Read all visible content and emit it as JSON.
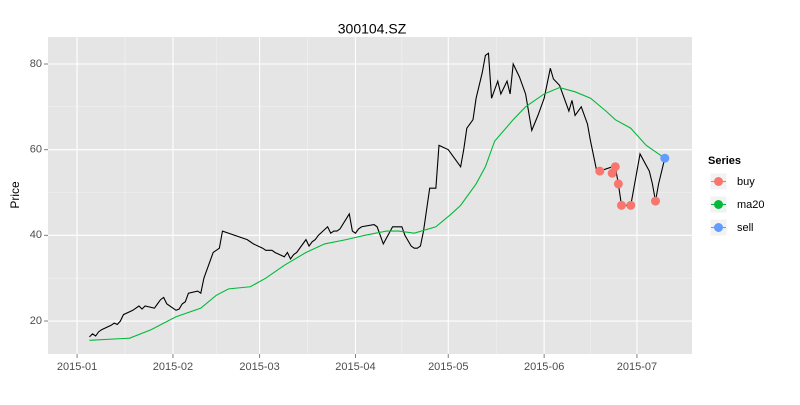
{
  "chart_data": {
    "type": "line",
    "title": "300104.SZ",
    "y_label": "Price",
    "legend_title": "Series",
    "legend_position": "right",
    "grid": true,
    "xlim": [
      -9.4,
      198.8
    ],
    "xticks": [
      {
        "value": 0,
        "label": "2015-01"
      },
      {
        "value": 31,
        "label": "2015-02"
      },
      {
        "value": 59,
        "label": "2015-03"
      },
      {
        "value": 90,
        "label": "2015-04"
      },
      {
        "value": 120,
        "label": "2015-05"
      },
      {
        "value": 151,
        "label": "2015-06"
      },
      {
        "value": 181,
        "label": "2015-07"
      }
    ],
    "ylim": [
      12.3,
      86.3
    ],
    "yticks": [
      20,
      40,
      60,
      80
    ],
    "series": [
      {
        "kind": "line",
        "color": "#000000",
        "x": [
          4,
          5,
          6,
          7,
          8,
          11,
          12,
          13,
          14,
          15,
          18,
          19,
          20,
          21,
          22,
          25,
          26,
          27,
          28,
          29,
          32,
          33,
          34,
          35,
          36,
          39,
          40,
          41,
          42,
          43,
          44,
          46,
          47,
          55,
          56,
          57,
          60,
          61,
          62,
          63,
          64,
          67,
          68,
          69,
          70,
          71,
          74,
          75,
          76,
          77,
          78,
          81,
          82,
          83,
          84,
          85,
          88,
          89,
          90,
          91,
          92,
          96,
          97,
          98,
          99,
          102,
          103,
          104,
          105,
          106,
          108,
          109,
          110,
          111,
          112,
          114,
          116,
          117,
          120,
          122,
          124,
          125,
          126,
          128,
          129,
          130,
          131,
          132,
          133,
          134,
          136,
          137,
          139,
          140,
          141,
          143,
          145,
          147,
          149,
          151,
          153,
          154,
          156,
          158,
          159,
          160,
          161,
          163,
          165,
          166,
          168,
          169,
          173,
          174,
          175,
          176,
          179,
          182,
          185,
          186,
          187,
          188,
          190
        ],
        "values": [
          16.3,
          17,
          16.5,
          17.5,
          18,
          19,
          19.5,
          19.2,
          20,
          21.5,
          22.5,
          23,
          23.5,
          22.8,
          23.5,
          23,
          24,
          25,
          25.5,
          24,
          22.5,
          22.8,
          24,
          24.5,
          26.5,
          27,
          26.5,
          30,
          32,
          34,
          36,
          37,
          41,
          39,
          38.5,
          38,
          37,
          36.5,
          36.5,
          36.5,
          36,
          35,
          36,
          34.5,
          35.5,
          36,
          39,
          37.5,
          38.5,
          39,
          40,
          42,
          40.5,
          41,
          41,
          41.5,
          45,
          41,
          40.5,
          41.5,
          42,
          42.5,
          42,
          40,
          38,
          42,
          42,
          42,
          42,
          40,
          37.5,
          37,
          37,
          37.5,
          41,
          51,
          51,
          61,
          60,
          58,
          56,
          60,
          65,
          67,
          72,
          75,
          78,
          82,
          82.5,
          72,
          76,
          73,
          76,
          73,
          80,
          77,
          73,
          64.5,
          68,
          72,
          79,
          76.5,
          75,
          71,
          69,
          71.5,
          68,
          70,
          66,
          62,
          55,
          55,
          56,
          56,
          52,
          47,
          47,
          59,
          55,
          52,
          48,
          52,
          58
        ]
      },
      {
        "name": "buy",
        "kind": "point",
        "color": "#F8766D",
        "x": [
          169,
          173,
          174,
          175,
          176,
          179,
          187
        ],
        "values": [
          55,
          54.5,
          56,
          52,
          47,
          47,
          48
        ]
      },
      {
        "name": "ma20",
        "kind": "line",
        "color": "#00BA38",
        "x": [
          4,
          17,
          24,
          32,
          40,
          45,
          49,
          56,
          61,
          67,
          74,
          80,
          87,
          93,
          100,
          104,
          109,
          116,
          121,
          124,
          129,
          132,
          135,
          141,
          145,
          151,
          156,
          161,
          166,
          171,
          174,
          179,
          184,
          188,
          190
        ],
        "values": [
          15.5,
          16,
          18,
          21,
          23,
          26,
          27.5,
          28,
          30,
          33,
          36,
          38,
          39,
          40,
          41,
          41,
          40.5,
          42,
          45,
          47,
          52,
          56,
          62,
          67,
          70,
          73,
          74.5,
          73.5,
          72,
          69,
          67,
          65,
          61,
          59,
          58
        ]
      },
      {
        "name": "sell",
        "kind": "point",
        "color": "#619CFF",
        "x": [
          190
        ],
        "values": [
          58
        ]
      }
    ]
  }
}
